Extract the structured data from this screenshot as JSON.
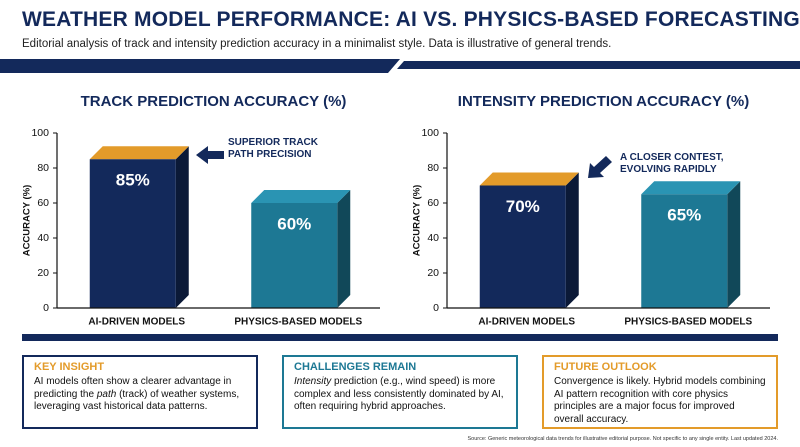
{
  "header": {
    "title": "WEATHER MODEL PERFORMANCE: AI VS. PHYSICS-BASED FORECASTING",
    "subtitle": "Editorial analysis of track and intensity prediction accuracy in a minimalist style. Data is illustrative of general trends."
  },
  "chart_data": [
    {
      "type": "bar",
      "title": "TRACK PREDICTION ACCURACY (%)",
      "y_label": "ACCURACY (%)",
      "categories": [
        "AI-DRIVEN MODELS",
        "PHYSICS-BASED MODELS"
      ],
      "values": [
        85,
        60
      ],
      "value_labels": [
        "85%",
        "60%"
      ],
      "colors": [
        "#13295b",
        "#1d7894"
      ],
      "top_colors": [
        "#e39b2a",
        "#2a94b3"
      ],
      "ylim": [
        0,
        100
      ],
      "yticks": [
        0,
        20,
        40,
        60,
        80,
        100
      ],
      "annotation": "SUPERIOR TRACK PATH PRECISION"
    },
    {
      "type": "bar",
      "title": "INTENSITY PREDICTION ACCURACY (%)",
      "y_label": "ACCURACY (%)",
      "categories": [
        "AI-DRIVEN MODELS",
        "PHYSICS-BASED MODELS"
      ],
      "values": [
        70,
        65
      ],
      "value_labels": [
        "70%",
        "65%"
      ],
      "colors": [
        "#13295b",
        "#1d7894"
      ],
      "top_colors": [
        "#e39b2a",
        "#2a94b3"
      ],
      "ylim": [
        0,
        100
      ],
      "yticks": [
        0,
        20,
        40,
        60,
        80,
        100
      ],
      "annotation": "A CLOSER CONTEST, EVOLVING RAPIDLY"
    }
  ],
  "cards": [
    {
      "title": "KEY INSIGHT",
      "body": [
        "AI models often show a clearer advantage in predicting the ",
        "path",
        " (track) of weather systems, leveraging vast historical data patterns."
      ]
    },
    {
      "title": "CHALLENGES REMAIN",
      "body": [
        "",
        "Intensity",
        " prediction (e.g., wind speed) is more complex and less consistently dominated by AI, often requiring hybrid approaches."
      ]
    },
    {
      "title": "FUTURE OUTLOOK",
      "body": [
        "Convergence is likely. Hybrid models combining AI pattern recognition with core physics principles are a major focus for improved overall accuracy.",
        "",
        ""
      ]
    }
  ],
  "source": "Source: Generic meteorological data trends for illustrative editorial purpose. Not specific to any single entity. Last updated 2024."
}
